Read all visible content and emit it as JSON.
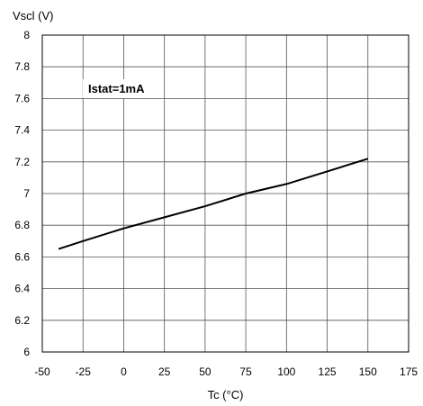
{
  "chart_data": {
    "type": "line",
    "title": "",
    "ylabel": "Vscl (V)",
    "xlabel": "Tc (°C)",
    "xlim": [
      -50,
      175
    ],
    "ylim": [
      6,
      8
    ],
    "x_ticks": [
      -50,
      -25,
      0,
      25,
      50,
      75,
      100,
      125,
      150,
      175
    ],
    "y_ticks": [
      6,
      6.2,
      6.4,
      6.6,
      6.8,
      7,
      7.2,
      7.4,
      7.6,
      7.8,
      8
    ],
    "x_tick_labels": [
      "-50",
      "-25",
      "0",
      "25",
      "50",
      "75",
      "100",
      "125",
      "150",
      "175"
    ],
    "y_tick_labels": [
      "6",
      "6.2",
      "6.4",
      "6.6",
      "6.8",
      "7",
      "7.2",
      "7.4",
      "7.6",
      "7.8",
      "8"
    ],
    "grid": true,
    "annotation": "Istat=1mA",
    "series": [
      {
        "x": [
          -40,
          -25,
          0,
          25,
          50,
          75,
          100,
          125,
          150
        ],
        "y": [
          6.65,
          6.7,
          6.78,
          6.85,
          6.92,
          7.0,
          7.06,
          7.14,
          7.22
        ],
        "color": "#000000"
      }
    ]
  }
}
